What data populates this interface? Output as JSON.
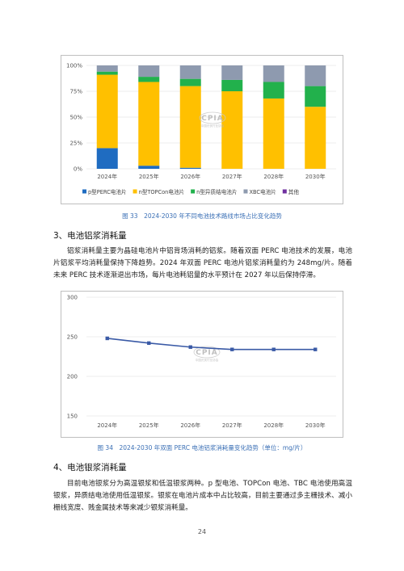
{
  "chart_data": [
    {
      "type": "bar",
      "stacked": true,
      "categories": [
        "2024年",
        "2025年",
        "2026年",
        "2027年",
        "2028年",
        "2030年"
      ],
      "series": [
        {
          "name": "p型PERC电池片",
          "color": "#1f6cc1",
          "values": [
            20,
            3,
            1,
            0,
            0,
            0
          ]
        },
        {
          "name": "n型TOPCon电池片",
          "color": "#ffc000",
          "values": [
            71,
            81,
            79,
            75,
            68,
            60
          ]
        },
        {
          "name": "n型异质结电池片",
          "color": "#22b14c",
          "values": [
            3,
            5,
            7,
            11,
            16,
            20
          ]
        },
        {
          "name": "XBC电池片",
          "color": "#8e9aaf",
          "values": [
            6,
            11,
            13,
            14,
            16,
            20
          ]
        },
        {
          "name": "其他",
          "color": "#7030a0",
          "values": [
            0,
            0,
            0,
            0,
            0,
            0
          ]
        }
      ],
      "yticks": [
        "0%",
        "25%",
        "50%",
        "75%",
        "100%"
      ],
      "ylim": [
        0,
        100
      ],
      "legend_position": "bottom",
      "grid": true
    },
    {
      "type": "line",
      "categories": [
        "2024年",
        "2025年",
        "2026年",
        "2027年",
        "2028年",
        "2030年"
      ],
      "series": [
        {
          "color": "#3a5aa6",
          "values": [
            248,
            242,
            237,
            234,
            234,
            234
          ]
        }
      ],
      "yticks": [
        "150",
        "200",
        "250",
        "300"
      ],
      "ylim": [
        150,
        300
      ],
      "grid": true
    }
  ],
  "watermark": {
    "logo": "CPIA",
    "sub": "中国光伏行业协会"
  },
  "captions": {
    "fig33": "图 33　2024-2030 年不同电池技术路线市场占比变化趋势",
    "fig34": "图 34　2024-2030 年双面 PERC 电池铝浆消耗量变化趋势（单位：mg/片）"
  },
  "sections": {
    "s3_title": "3、电池铝浆消耗量",
    "s3_para": "铝浆消耗量主要为晶硅电池片中铝背场消耗的铝浆。随着双面 PERC 电池技术的发展，电池片铝浆平均消耗量保持下降趋势。2024 年双面 PERC 电池片铝浆消耗量约为 248mg/片。随着未来 PERC 技术逐渐退出市场，每片电池耗铝量的水平预计在 2027 年以后保持停滞。",
    "s4_title": "4、电池银浆消耗量",
    "s4_para": "目前电池银浆分为高温银浆和低温银浆两种。p 型电池、TOPCon 电池、TBC 电池使用高温银浆，异质结电池使用低温银浆。银浆在电池片成本中占比较高，目前主要通过多主栅技术、减小栅线宽度、贱金属技术等来减少银浆消耗量。"
  },
  "page_number": "24"
}
